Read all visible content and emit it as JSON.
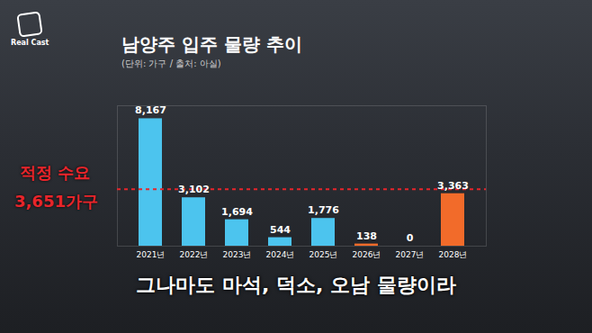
{
  "chart_data": {
    "type": "bar",
    "title": "남양주 입주 물량 추이",
    "subtitle": "(단위: 가구 / 출처: 아실)",
    "categories": [
      "2021년",
      "2022년",
      "2023년",
      "2024년",
      "2025년",
      "2026년",
      "2027년",
      "2028년"
    ],
    "values": [
      8167,
      3102,
      1694,
      544,
      1776,
      138,
      0,
      3363
    ],
    "value_labels": [
      "8,167",
      "3,102",
      "1,694",
      "544",
      "1,776",
      "138",
      "0",
      "3,363"
    ],
    "colors": [
      "#4cc4ee",
      "#4cc4ee",
      "#4cc4ee",
      "#4cc4ee",
      "#4cc4ee",
      "#f26b2a",
      "#f26b2a",
      "#f26b2a"
    ],
    "data_labels": true,
    "tick_labels": "x",
    "ylim": [
      0,
      9000
    ],
    "annotations": [
      {
        "text": "적정 수요",
        "value": 3651,
        "value_label": "3,651가구",
        "color": "#e8252b",
        "line_style": "dashed"
      }
    ],
    "caption": "그나마도 마석, 덕소, 오남 물량이라",
    "logo": "Real Cast"
  }
}
